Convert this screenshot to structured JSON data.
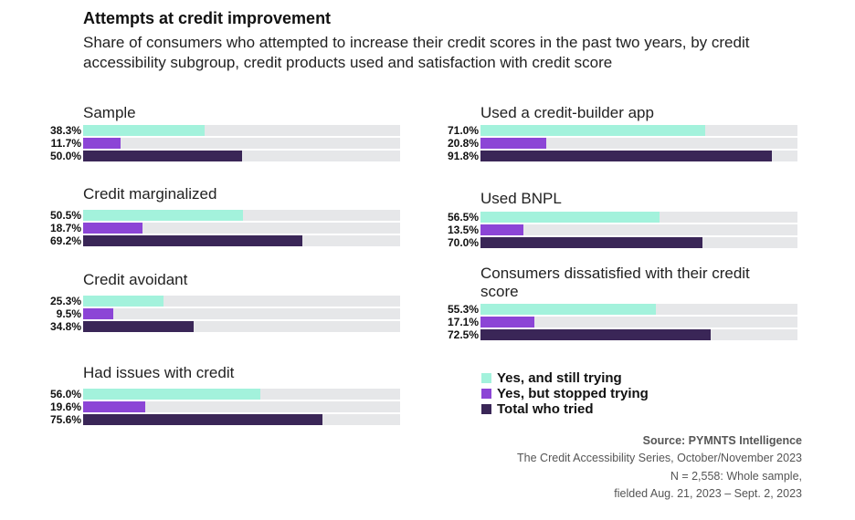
{
  "chart_data": {
    "type": "bar",
    "orientation": "horizontal",
    "title": "Attempts at credit improvement",
    "subtitle": "Share of consumers who attempted to increase their credit scores in the past two years, by credit accessibility subgroup, credit products used and satisfaction with credit score",
    "xlim": [
      0,
      100
    ],
    "series": [
      {
        "name": "Yes, and still trying",
        "color": "#a3f2dc"
      },
      {
        "name": "Yes, but stopped trying",
        "color": "#8c45d6"
      },
      {
        "name": "Total who tried",
        "color": "#3a2657"
      }
    ],
    "groups": [
      {
        "name": "Sample",
        "values": [
          38.3,
          11.7,
          50.0
        ],
        "labels": [
          "38.3%",
          "11.7%",
          "50.0%"
        ]
      },
      {
        "name": "Credit marginalized",
        "values": [
          50.5,
          18.7,
          69.2
        ],
        "labels": [
          "50.5%",
          "18.7%",
          "69.2%"
        ]
      },
      {
        "name": "Credit avoidant",
        "values": [
          25.3,
          9.5,
          34.8
        ],
        "labels": [
          "25.3%",
          "9.5%",
          "34.8%"
        ]
      },
      {
        "name": "Had issues with credit",
        "values": [
          56.0,
          19.6,
          75.6
        ],
        "labels": [
          "56.0%",
          "19.6%",
          "75.6%"
        ]
      },
      {
        "name": "Used a credit-builder app",
        "values": [
          71.0,
          20.8,
          91.8
        ],
        "labels": [
          "71.0%",
          "20.8%",
          "91.8%"
        ]
      },
      {
        "name": "Used BNPL",
        "values": [
          56.5,
          13.5,
          70.0
        ],
        "labels": [
          "56.5%",
          "13.5%",
          "70.0%"
        ]
      },
      {
        "name": "Consumers dissatisfied with their credit score",
        "values": [
          55.3,
          17.1,
          72.5
        ],
        "labels": [
          "55.3%",
          "17.1%",
          "72.5%"
        ]
      }
    ],
    "legend_placement": "bottom-right",
    "source": [
      "Source: PYMNTS Intelligence",
      "The Credit Accessibility Series, October/November 2023",
      "N = 2,558: Whole sample,",
      "fielded Aug. 21, 2023 – Sept. 2, 2023"
    ]
  }
}
